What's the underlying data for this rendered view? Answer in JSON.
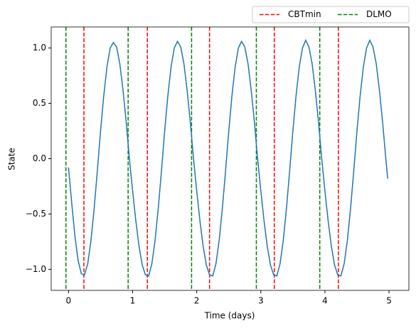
{
  "chart_data": {
    "type": "line",
    "xlabel": "Time (days)",
    "ylabel": "State",
    "x": [
      0,
      0.05,
      0.1,
      0.15,
      0.2,
      0.25,
      0.3,
      0.35,
      0.4,
      0.45,
      0.5,
      0.55,
      0.6,
      0.65,
      0.7,
      0.75,
      0.8,
      0.85,
      0.9,
      0.95,
      1,
      1.05,
      1.1,
      1.15,
      1.2,
      1.25,
      1.3,
      1.35,
      1.4,
      1.45,
      1.5,
      1.55,
      1.6,
      1.65,
      1.7,
      1.75,
      1.8,
      1.85,
      1.9,
      1.95,
      2,
      2.05,
      2.1,
      2.15,
      2.2,
      2.25,
      2.3,
      2.35,
      2.4,
      2.45,
      2.5,
      2.55,
      2.6,
      2.65,
      2.7,
      2.75,
      2.8,
      2.85,
      2.9,
      2.95,
      3,
      3.05,
      3.1,
      3.15,
      3.2,
      3.25,
      3.3,
      3.35,
      3.4,
      3.45,
      3.5,
      3.55,
      3.6,
      3.65,
      3.7,
      3.75,
      3.8,
      3.85,
      3.9,
      3.95,
      4,
      4.05,
      4.1,
      4.15,
      4.2,
      4.25,
      4.3,
      4.35,
      4.4,
      4.45,
      4.5,
      4.55,
      4.6,
      4.65,
      4.7,
      4.75,
      4.8,
      4.85,
      4.9,
      4.95,
      4.98
    ],
    "values": [
      -0.08,
      -0.4,
      -0.7,
      -0.92,
      -1.04,
      -1.05,
      -0.95,
      -0.74,
      -0.45,
      -0.11,
      0.25,
      0.57,
      0.83,
      1.0,
      1.05,
      1.01,
      0.86,
      0.62,
      0.33,
      0.0,
      -0.29,
      -0.56,
      -0.79,
      -0.96,
      -1.05,
      -1.06,
      -0.95,
      -0.74,
      -0.45,
      -0.11,
      0.25,
      0.57,
      0.83,
      1.0,
      1.06,
      1.01,
      0.86,
      0.62,
      0.33,
      0.0,
      -0.29,
      -0.56,
      -0.79,
      -0.96,
      -1.05,
      -1.06,
      -0.95,
      -0.74,
      -0.45,
      -0.11,
      0.25,
      0.57,
      0.83,
      1.0,
      1.06,
      1.01,
      0.86,
      0.62,
      0.33,
      0.0,
      -0.29,
      -0.56,
      -0.79,
      -0.96,
      -1.05,
      -1.06,
      -0.95,
      -0.74,
      -0.45,
      -0.11,
      0.25,
      0.57,
      0.83,
      1.0,
      1.07,
      1.01,
      0.86,
      0.62,
      0.33,
      0.0,
      -0.29,
      -0.56,
      -0.79,
      -0.96,
      -1.05,
      -1.06,
      -0.95,
      -0.74,
      -0.45,
      -0.11,
      0.25,
      0.57,
      0.83,
      1.0,
      1.07,
      1.01,
      0.86,
      0.62,
      0.33,
      0.0,
      -0.18
    ],
    "color": "#1f77b4",
    "vlines": [
      {
        "name": "CBTmin",
        "color": "#ff0000",
        "x": [
          0.24,
          1.23,
          2.2,
          3.21,
          4.21
        ]
      },
      {
        "name": "DLMO",
        "color": "#008000",
        "x": [
          -0.04,
          0.93,
          1.92,
          2.93,
          3.92
        ]
      }
    ],
    "xlim": [
      -0.27,
      5.31
    ],
    "ylim": [
      -1.19,
      1.19
    ],
    "xticks": [
      0,
      1,
      2,
      3,
      4,
      5
    ],
    "yticks": [
      {
        "value": -1.0,
        "label": "−1.0"
      },
      {
        "value": -0.5,
        "label": "−0.5"
      },
      {
        "value": 0,
        "label": "0.0"
      },
      0.5,
      {
        "value": 1.0,
        "label": "1.0"
      }
    ],
    "legend": "upper right"
  }
}
